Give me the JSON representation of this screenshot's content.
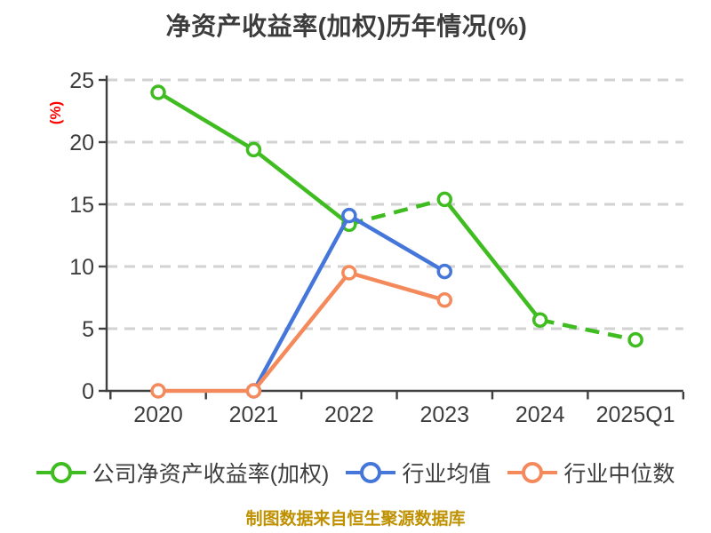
{
  "title": "净资产收益率(加权)历年情况(%)",
  "ylabel": "(%)",
  "footer": "制图数据来自恒生聚源数据库",
  "colors": {
    "company_green": "#3fbc20",
    "industry_mean_blue": "#4477d9",
    "industry_median_orange": "#f48a5b",
    "title_text": "#3c3c3c",
    "tick_text": "#3d3d3d",
    "axis_line": "#3f3f3f",
    "gridline": "#d2d2d2",
    "ylabel_red": "#ff0000",
    "footer_gold": "#bf9100",
    "marker_fill": "#ffffff"
  },
  "legend": {
    "items": [
      {
        "label": "公司净资产收益率(加权)",
        "color_key": "company_green"
      },
      {
        "label": "行业均值",
        "color_key": "industry_mean_blue"
      },
      {
        "label": "行业中位数",
        "color_key": "industry_median_orange"
      }
    ]
  },
  "chart_data": {
    "type": "line",
    "categories": [
      "2020",
      "2021",
      "2022",
      "2023",
      "2024",
      "2025Q1"
    ],
    "series": [
      {
        "name": "公司净资产收益率(加权)",
        "color_key": "company_green",
        "values": [
          24.0,
          19.4,
          13.4,
          15.4,
          5.7,
          4.1
        ],
        "segment_dash": [
          false,
          false,
          true,
          false,
          true
        ]
      },
      {
        "name": "行业均值",
        "color_key": "industry_mean_blue",
        "values": [
          null,
          0.0,
          14.1,
          9.6,
          null,
          null
        ],
        "segment_dash": [
          false,
          false,
          false,
          false,
          false
        ]
      },
      {
        "name": "行业中位数",
        "color_key": "industry_median_orange",
        "values": [
          0.0,
          0.0,
          9.5,
          7.3,
          null,
          null
        ],
        "segment_dash": [
          false,
          false,
          false,
          false,
          false
        ]
      }
    ],
    "ylim": [
      0,
      25
    ],
    "yticks": [
      0,
      5,
      10,
      15,
      20,
      25
    ],
    "grid": "horizontal dashed",
    "legend_position": "bottom",
    "marker": "circle white-filled colored-ring"
  }
}
